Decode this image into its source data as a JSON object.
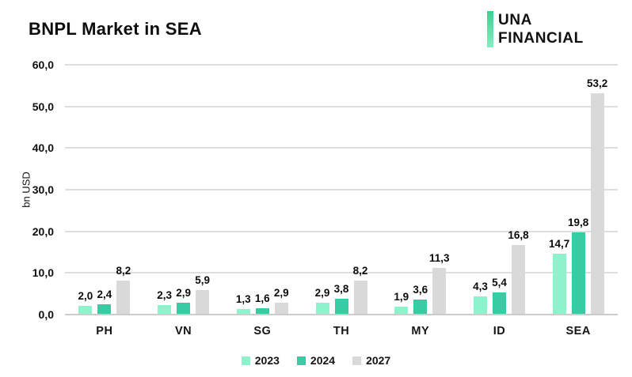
{
  "header": {
    "title": "BNPL Market in SEA",
    "logo": {
      "line1": "UNA",
      "line2": "FINANCIAL"
    }
  },
  "chart_data": {
    "type": "bar",
    "title": "BNPL Market in SEA",
    "xlabel": "",
    "ylabel": "bn USD",
    "ylim": [
      0,
      60
    ],
    "ytick_step": 10,
    "yticks": [
      "0,0",
      "10,0",
      "20,0",
      "30,0",
      "40,0",
      "50,0",
      "60,0"
    ],
    "grid": true,
    "legend_position": "bottom",
    "decimal_format": "comma",
    "categories": [
      "PH",
      "VN",
      "SG",
      "TH",
      "MY",
      "ID",
      "SEA"
    ],
    "series": [
      {
        "name": "2023",
        "color": "#8DF3CC",
        "values": [
          2.0,
          2.3,
          1.3,
          2.9,
          1.9,
          4.3,
          14.7
        ],
        "labels": [
          "2,0",
          "2,3",
          "1,3",
          "2,9",
          "1,9",
          "4,3",
          "14,7"
        ]
      },
      {
        "name": "2024",
        "color": "#38CBA4",
        "values": [
          2.4,
          2.9,
          1.6,
          3.8,
          3.6,
          5.4,
          19.8
        ],
        "labels": [
          "2,4",
          "2,9",
          "1,6",
          "3,8",
          "3,6",
          "5,4",
          "19,8"
        ]
      },
      {
        "name": "2027",
        "color": "#D9D9D9",
        "values": [
          8.2,
          5.9,
          2.9,
          8.2,
          11.3,
          16.8,
          53.2
        ],
        "labels": [
          "8,2",
          "5,9",
          "2,9",
          "8,2",
          "11,3",
          "16,8",
          "53,2"
        ]
      }
    ]
  },
  "colors": {
    "accent_mint": "#8DF3CC",
    "accent_teal": "#38CBA4",
    "neutral_gray": "#D9D9D9",
    "gridline": "#DEDEDE",
    "baseline": "#CCCCCC",
    "logo_green_top": "#3BCF92",
    "logo_green_bottom": "#86EEC0",
    "text": "#0E0E0E"
  }
}
